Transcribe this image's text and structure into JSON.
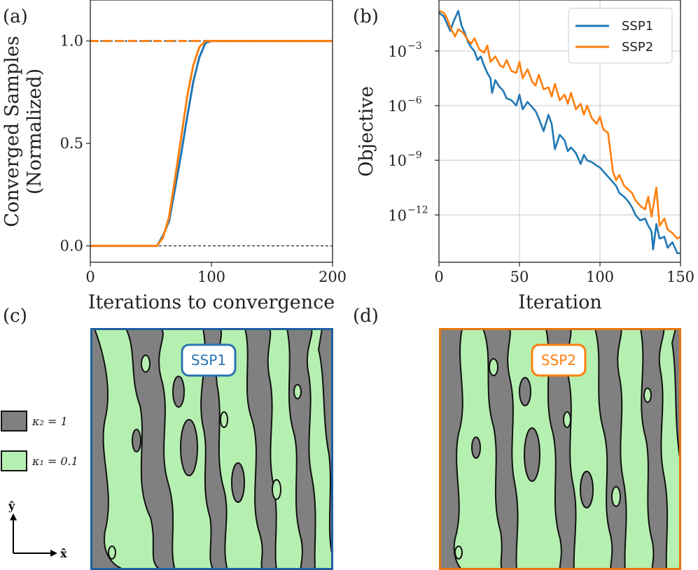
{
  "panel_labels": {
    "a": "(a)",
    "b": "(b)",
    "c": "(c)",
    "d": "(d)"
  },
  "colors": {
    "ssp1": "#1f77b4",
    "ssp2": "#ff7f0e",
    "phase_dark": "#808080",
    "phase_light": "#b6f0b0"
  },
  "chart_data": [
    {
      "id": "a",
      "type": "line",
      "xlabel": "Iterations to convergence",
      "ylabel": "Converged Samples",
      "ylabel2": "(Normalized)",
      "xlim": [
        0,
        200
      ],
      "ylim": [
        -0.08,
        1.2
      ],
      "xticks": [
        0,
        100,
        200
      ],
      "xtick_labels": [
        "0",
        "100",
        "200"
      ],
      "yticks": [
        0.0,
        0.5,
        1.0
      ],
      "ytick_labels": [
        "0.0",
        "0.5",
        "1.0"
      ],
      "reference_lines": [
        0.0,
        1.0
      ],
      "series": [
        {
          "name": "SSP1",
          "color": "#1f77b4",
          "x": [
            0,
            55,
            60,
            65,
            70,
            75,
            80,
            85,
            90,
            95,
            100,
            105,
            200
          ],
          "y": [
            0,
            0,
            0.05,
            0.12,
            0.28,
            0.45,
            0.63,
            0.8,
            0.92,
            0.99,
            1.0,
            1.0,
            1.0
          ]
        },
        {
          "name": "SSP2",
          "color": "#ff7f0e",
          "x": [
            0,
            55,
            60,
            65,
            70,
            75,
            80,
            85,
            90,
            95,
            100,
            200
          ],
          "y": [
            0,
            0,
            0.04,
            0.14,
            0.33,
            0.53,
            0.73,
            0.88,
            0.97,
            1.0,
            1.0,
            1.0
          ]
        }
      ]
    },
    {
      "id": "b",
      "type": "line",
      "xlabel": "Iteration",
      "ylabel": "Objective",
      "yscale": "log",
      "xlim": [
        0,
        150
      ],
      "ylim_log10": [
        -14.6,
        -0.2
      ],
      "xticks": [
        0,
        50,
        100,
        150
      ],
      "xtick_labels": [
        "0",
        "50",
        "100",
        "150"
      ],
      "yticks_log10": [
        -3,
        -6,
        -9,
        -12
      ],
      "ytick_labels": [
        "10",
        "10",
        "10",
        "10"
      ],
      "ytick_exponents": [
        "−3",
        "−6",
        "−9",
        "−12"
      ],
      "grid": true,
      "legend": "top-right",
      "series": [
        {
          "name": "SSP1",
          "color": "#1f77b4",
          "x": [
            0,
            3,
            5,
            7,
            9,
            11,
            12,
            14,
            16,
            18,
            20,
            22,
            24,
            26,
            28,
            30,
            32,
            33,
            35,
            37,
            40,
            42,
            45,
            48,
            50,
            52,
            55,
            58,
            60,
            62,
            65,
            68,
            70,
            72,
            75,
            78,
            80,
            82,
            85,
            88,
            90,
            92,
            95,
            98,
            100,
            102,
            105,
            108,
            110,
            112,
            115,
            118,
            120,
            122,
            125,
            128,
            130,
            132,
            133,
            135,
            137,
            140,
            142,
            145,
            148,
            150
          ],
          "y": [
            -0.9,
            -1.1,
            -1.5,
            -1.9,
            -1.4,
            -1.0,
            -0.8,
            -1.6,
            -2.0,
            -2.5,
            -2.8,
            -3.0,
            -3.5,
            -3.3,
            -3.8,
            -4.2,
            -4.5,
            -5.3,
            -4.6,
            -4.9,
            -5.2,
            -5.6,
            -5.7,
            -6.0,
            -5.4,
            -6.2,
            -5.8,
            -6.1,
            -6.3,
            -6.7,
            -7.4,
            -6.5,
            -7.0,
            -8.4,
            -7.6,
            -7.9,
            -8.5,
            -8.3,
            -8.6,
            -9.2,
            -8.7,
            -9.0,
            -9.1,
            -9.3,
            -9.4,
            -9.6,
            -9.9,
            -10.2,
            -10.4,
            -10.8,
            -11.0,
            -11.3,
            -11.6,
            -12.0,
            -12.3,
            -12.2,
            -12.6,
            -12.9,
            -13.9,
            -12.5,
            -13.3,
            -13.2,
            -13.8,
            -13.5,
            -14.1,
            -14.1
          ]
        },
        {
          "name": "SSP2",
          "color": "#ff7f0e",
          "x": [
            0,
            3,
            5,
            7,
            10,
            12,
            15,
            18,
            20,
            22,
            25,
            28,
            30,
            32,
            35,
            38,
            40,
            42,
            45,
            48,
            50,
            52,
            55,
            58,
            60,
            62,
            65,
            68,
            70,
            72,
            75,
            78,
            80,
            82,
            85,
            88,
            90,
            92,
            95,
            98,
            100,
            102,
            105,
            108,
            110,
            112,
            115,
            120,
            122,
            125,
            128,
            130,
            132,
            135,
            137,
            140,
            142,
            145,
            148,
            150
          ],
          "y": [
            -0.8,
            -0.9,
            -1.2,
            -1.7,
            -2.2,
            -1.8,
            -2.0,
            -2.4,
            -2.6,
            -2.3,
            -2.9,
            -3.1,
            -2.7,
            -3.6,
            -3.3,
            -3.8,
            -3.9,
            -3.5,
            -4.1,
            -4.2,
            -3.6,
            -4.5,
            -4.0,
            -4.7,
            -4.9,
            -4.3,
            -5.1,
            -5.0,
            -5.5,
            -4.8,
            -5.7,
            -5.4,
            -5.9,
            -5.3,
            -6.2,
            -5.9,
            -6.5,
            -6.0,
            -6.7,
            -7.0,
            -6.6,
            -7.3,
            -7.5,
            -9.6,
            -10.1,
            -9.8,
            -10.4,
            -10.8,
            -11.2,
            -11.5,
            -11.7,
            -11.0,
            -12.1,
            -10.5,
            -12.6,
            -12.2,
            -12.8,
            -13.0,
            -13.3,
            -13.2
          ]
        }
      ]
    }
  ],
  "maps": {
    "c": {
      "title": "SSP1",
      "border_color": "#1f5fa0",
      "badge_color": "#2a74b3"
    },
    "d": {
      "title": "SSP2",
      "border_color": "#e8760f",
      "badge_color": "#ff7f0e"
    }
  },
  "phase_key": {
    "dark_label": "κ₂ = 1",
    "light_label": "κ₁ = 0.1"
  },
  "axes_glyph": {
    "y": "ŷ",
    "x": "x̂"
  }
}
